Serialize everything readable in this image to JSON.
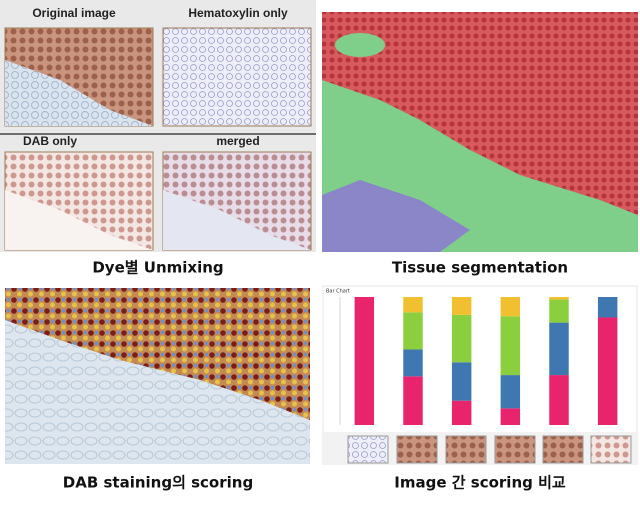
{
  "panels": [
    {
      "caption": "Dye별 Unmixing",
      "sub_labels": [
        "Original image",
        "Hematoxylin only",
        "DAB only",
        "merged"
      ]
    },
    {
      "caption": "Tissue segmentation"
    },
    {
      "caption": "DAB staining의 scoring"
    },
    {
      "caption": "Image 간 scoring 비교"
    }
  ],
  "chart_data": {
    "type": "bar",
    "stacked": true,
    "title": "Bar Chart",
    "categories": [
      null,
      null,
      null,
      null,
      null,
      null
    ],
    "ylim": [
      0,
      100
    ],
    "series": [
      {
        "color": "#e8246c",
        "values": [
          100,
          38,
          19,
          13,
          39,
          84
        ]
      },
      {
        "color": "#3f78b0",
        "values": [
          0,
          21,
          30,
          26,
          41,
          16
        ]
      },
      {
        "color": "#8ccf3e",
        "values": [
          0,
          29,
          37,
          46,
          18,
          0
        ]
      },
      {
        "color": "#f0c030",
        "values": [
          0,
          12,
          14,
          15,
          2,
          0
        ]
      }
    ]
  }
}
